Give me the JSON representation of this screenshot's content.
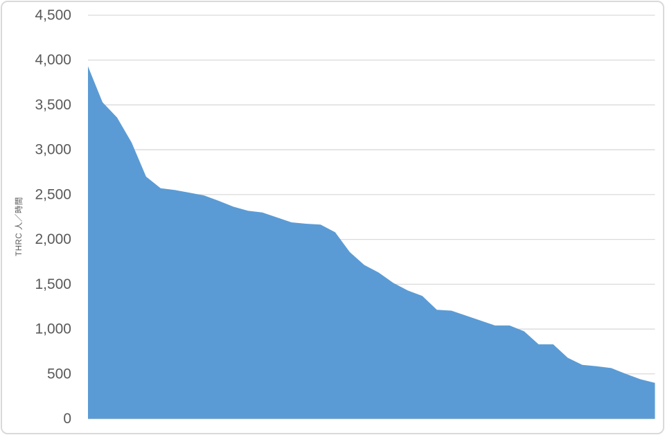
{
  "chart_data": {
    "type": "area",
    "title": "",
    "xlabel": "",
    "ylabel": "THRC 人／時間",
    "x_axis_labels": "none",
    "ylim": [
      0,
      4500
    ],
    "ytick_interval": 500,
    "ytick_labels": [
      "0",
      "500",
      "1,000",
      "1,500",
      "2,000",
      "2,500",
      "3,000",
      "3,500",
      "4,000",
      "4,500"
    ],
    "grid": true,
    "legend": "none",
    "series": [
      {
        "name": "THRC",
        "values": [
          3930,
          3530,
          3360,
          3080,
          2700,
          2570,
          2550,
          2520,
          2490,
          2430,
          2365,
          2320,
          2300,
          2245,
          2190,
          2175,
          2165,
          2080,
          1860,
          1715,
          1630,
          1515,
          1430,
          1370,
          1215,
          1205,
          1150,
          1095,
          1040,
          1040,
          975,
          830,
          830,
          680,
          600,
          585,
          565,
          500,
          440,
          400
        ]
      }
    ],
    "colors": {
      "area_fill": "#5B9BD5",
      "gridline": "#DADADA",
      "zero_axis_line": "#C9C9C9",
      "tick_label": "#595959",
      "axis_title": "#595959",
      "background": "#FFFFFF",
      "frame_border": "#D9D9D9"
    }
  }
}
